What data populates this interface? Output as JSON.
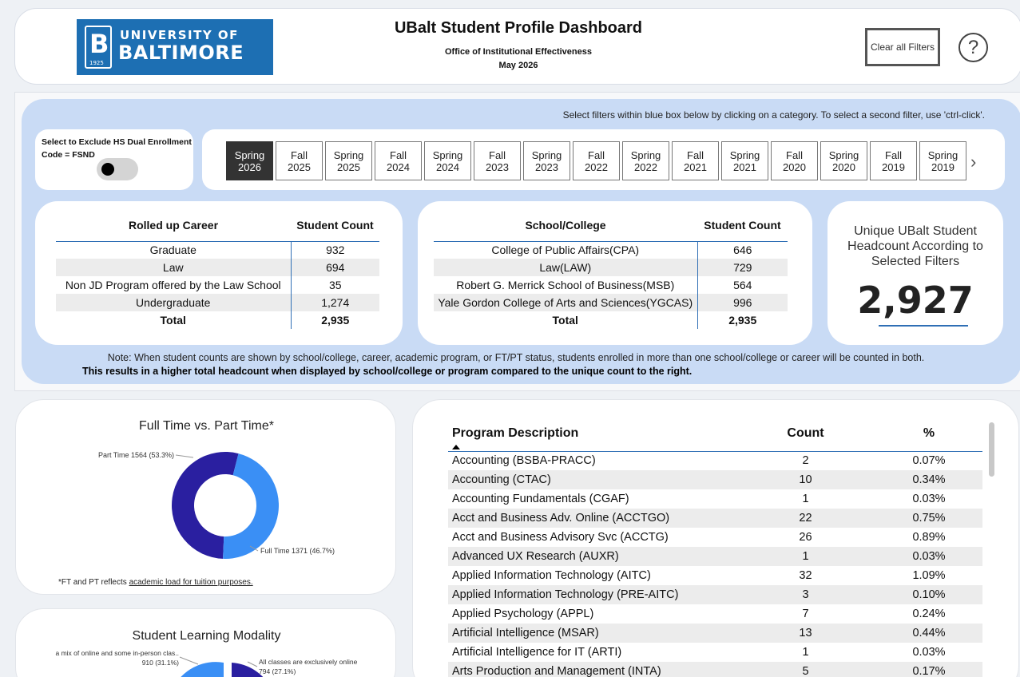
{
  "header": {
    "logo_line1": "UNIVERSITY OF",
    "logo_line2": "BALTIMORE",
    "logo_letter": "B",
    "logo_year": "1925",
    "title": "UBalt Student Profile Dashboard",
    "subtitle": "Office of Institutional Effectiveness",
    "date": "May 2026",
    "clear_filters_label": "Clear all Filters",
    "help_label": "?"
  },
  "filters": {
    "instruction": "Select filters within blue box below by clicking on a category. To select a second filter, use 'ctrl-click'.",
    "hs_exclude_label": "Select to Exclude HS Dual Enrollment Code = FSND",
    "terms": [
      {
        "season": "Spring",
        "year": "2026",
        "selected": true
      },
      {
        "season": "Fall",
        "year": "2025"
      },
      {
        "season": "Spring",
        "year": "2025"
      },
      {
        "season": "Fall",
        "year": "2024"
      },
      {
        "season": "Spring",
        "year": "2024"
      },
      {
        "season": "Fall",
        "year": "2023"
      },
      {
        "season": "Spring",
        "year": "2023"
      },
      {
        "season": "Fall",
        "year": "2022"
      },
      {
        "season": "Spring",
        "year": "2022"
      },
      {
        "season": "Fall",
        "year": "2021"
      },
      {
        "season": "Spring",
        "year": "2021"
      },
      {
        "season": "Fall",
        "year": "2020"
      },
      {
        "season": "Spring",
        "year": "2020"
      },
      {
        "season": "Fall",
        "year": "2019"
      },
      {
        "season": "Spring",
        "year": "2019"
      }
    ],
    "next_glyph": "›"
  },
  "career_table": {
    "headers": [
      "Rolled up Career",
      "Student Count"
    ],
    "rows": [
      [
        "Graduate",
        "932"
      ],
      [
        "Law",
        "694"
      ],
      [
        "Non JD Program offered by the Law School",
        "35"
      ],
      [
        "Undergraduate",
        "1,274"
      ]
    ],
    "total": [
      "Total",
      "2,935"
    ]
  },
  "school_table": {
    "headers": [
      "School/College",
      "Student Count"
    ],
    "rows": [
      [
        "College of Public Affairs(CPA)",
        "646"
      ],
      [
        "Law(LAW)",
        "729"
      ],
      [
        "Robert G. Merrick School of Business(MSB)",
        "564"
      ],
      [
        "Yale Gordon College of Arts and Sciences(YGCAS)",
        "996"
      ]
    ],
    "total": [
      "Total",
      "2,935"
    ]
  },
  "unique": {
    "label": "Unique UBalt Student Headcount According to Selected Filters",
    "value": "2,927"
  },
  "notes": {
    "line1": "Note: When student counts are shown by school/college, career, academic program, or FT/PT status, students enrolled in more than one school/college or career will be counted in both.",
    "line2": "This results in a higher total headcount when displayed by school/college or program compared to the unique count to the right."
  },
  "ftpt": {
    "title": "Full Time vs. Part Time*",
    "note_prefix": "*FT and PT reflects ",
    "note_link": "academic load for tuition purposes.",
    "slices": [
      {
        "label": "Part Time 1564 (53.3%)",
        "value": 1564,
        "color": "#2a1fa0"
      },
      {
        "label": "Full Time 1371 (46.7%)",
        "value": 1371,
        "color": "#3a8ff5"
      }
    ]
  },
  "modality": {
    "title": "Student Learning Modality",
    "label_left_1": "a mix of online and some in-person clas..",
    "label_left_2": "910 (31.1%)",
    "label_right_1": "All classes are exclusively online",
    "label_right_2": "794 (27.1%)",
    "colors": [
      "#3a8ff5",
      "#2a1fa0"
    ]
  },
  "programs": {
    "headers": [
      "Program Description",
      "Count",
      "%"
    ],
    "rows": [
      [
        "Accounting (BSBA-PRACC)",
        "2",
        "0.07%"
      ],
      [
        "Accounting (CTAC)",
        "10",
        "0.34%"
      ],
      [
        "Accounting Fundamentals (CGAF)",
        "1",
        "0.03%"
      ],
      [
        "Acct and Business Adv. Online (ACCTGO)",
        "22",
        "0.75%"
      ],
      [
        "Acct and Business Advisory Svc (ACCTG)",
        "26",
        "0.89%"
      ],
      [
        "Advanced UX Research (AUXR)",
        "1",
        "0.03%"
      ],
      [
        "Applied Information Technology (AITC)",
        "32",
        "1.09%"
      ],
      [
        "Applied Information Technology (PRE-AITC)",
        "3",
        "0.10%"
      ],
      [
        "Applied Psychology (APPL)",
        "7",
        "0.24%"
      ],
      [
        "Artificial Intelligence (MSAR)",
        "13",
        "0.44%"
      ],
      [
        "Artificial Intelligence for IT (ARTI)",
        "1",
        "0.03%"
      ],
      [
        "Arts Production and Management (INTA)",
        "5",
        "0.17%"
      ]
    ]
  }
}
